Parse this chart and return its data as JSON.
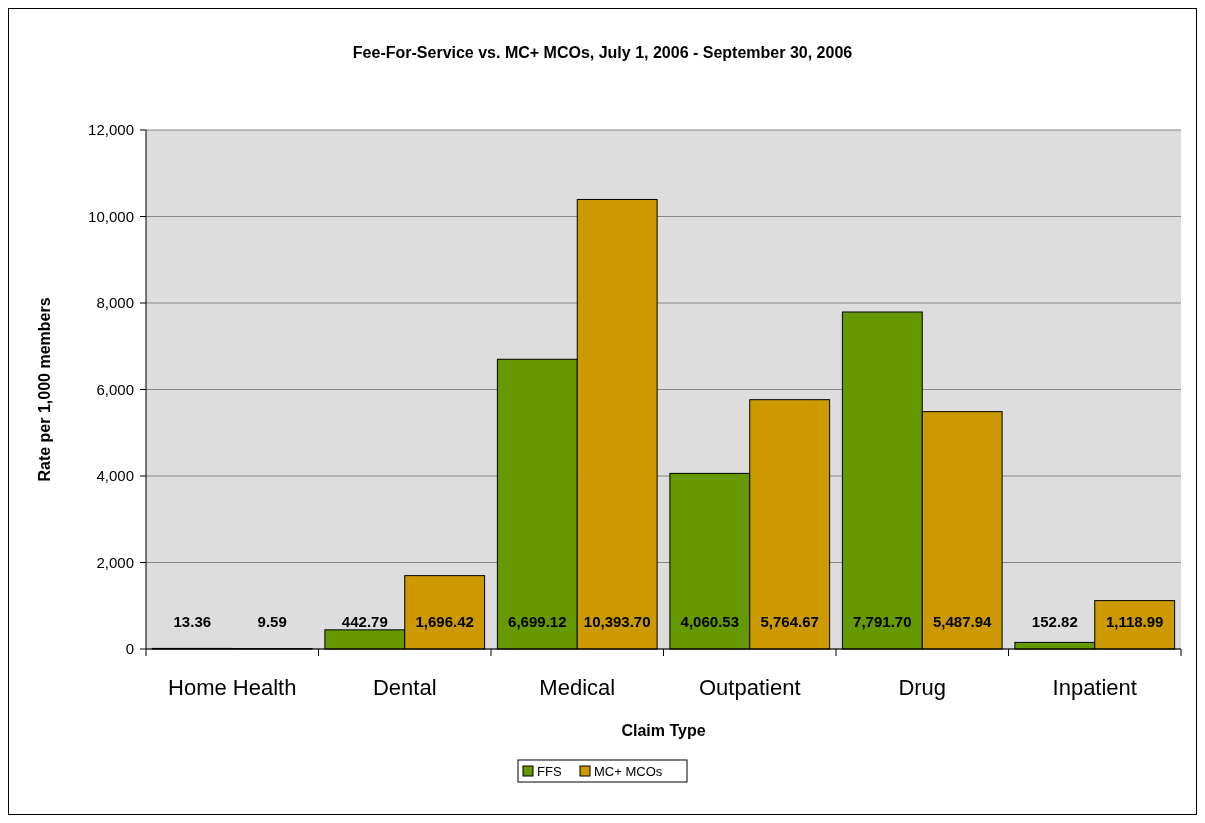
{
  "chart_data": {
    "type": "bar",
    "title": "Fee-For-Service vs. MC+ MCOs, July 1, 2006 - September 30, 2006",
    "xlabel": "Claim Type",
    "ylabel": "Rate per 1,000 members",
    "categories": [
      "Home Health",
      "Dental",
      "Medical",
      "Outpatient",
      "Drug",
      "Inpatient"
    ],
    "series": [
      {
        "name": "FFS",
        "color": "#669900",
        "values": [
          13.36,
          442.79,
          6699.12,
          4060.53,
          7791.7,
          152.82
        ],
        "value_labels": [
          "13.36",
          "442.79",
          "6,699.12",
          "4,060.53",
          "7,791.70",
          "152.82"
        ]
      },
      {
        "name": "MC+ MCOs",
        "color": "#cc9900",
        "values": [
          9.59,
          1696.42,
          10393.7,
          5764.67,
          5487.94,
          1118.99
        ],
        "value_labels": [
          "9.59",
          "1,696.42",
          "10,393.70",
          "5,764.67",
          "5,487.94",
          "1,118.99"
        ]
      }
    ],
    "ylim": [
      0,
      12000
    ],
    "yticks": [
      {
        "value": 0,
        "label": "0"
      },
      {
        "value": 2000,
        "label": "2,000"
      },
      {
        "value": 4000,
        "label": "4,000"
      },
      {
        "value": 6000,
        "label": "6,000"
      },
      {
        "value": 8000,
        "label": "8,000"
      },
      {
        "value": 10000,
        "label": "10,000"
      },
      {
        "value": 12000,
        "label": "12,000"
      }
    ],
    "grid": "y",
    "legend": "bottom"
  }
}
